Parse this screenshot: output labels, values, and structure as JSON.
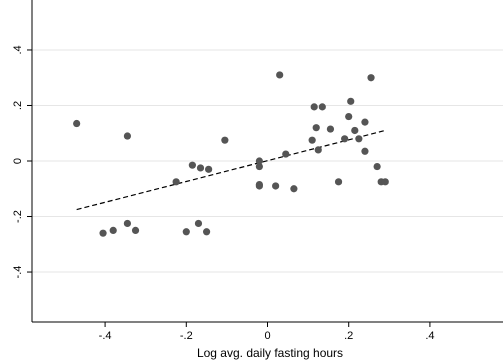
{
  "chart_data": {
    "type": "scatter",
    "title": "",
    "xlabel": "Log avg. daily fasting hours",
    "ylabel": "",
    "xlim": [
      -0.58,
      0.58
    ],
    "ylim": [
      -0.58,
      0.58
    ],
    "x_ticks": [
      -0.4,
      -0.2,
      0,
      0.2,
      0.4
    ],
    "x_tick_labels": [
      "-.4",
      "-.2",
      "0",
      ".2",
      ".4"
    ],
    "y_ticks": [
      -0.4,
      -0.2,
      0,
      0.2,
      0.4
    ],
    "y_tick_labels": [
      "-.4",
      "-.2",
      "0",
      ".2",
      ".4"
    ],
    "grid": "horizontal",
    "legend": "none",
    "colors": {
      "points": "#555555",
      "fit_line": "#000000",
      "grid": "#e6e6e6",
      "axis": "#000000"
    },
    "points": [
      {
        "x": -0.47,
        "y": 0.135
      },
      {
        "x": -0.405,
        "y": -0.26
      },
      {
        "x": -0.38,
        "y": -0.25
      },
      {
        "x": -0.345,
        "y": -0.225
      },
      {
        "x": -0.345,
        "y": 0.09
      },
      {
        "x": -0.325,
        "y": -0.25
      },
      {
        "x": -0.225,
        "y": -0.075
      },
      {
        "x": -0.2,
        "y": -0.255
      },
      {
        "x": -0.185,
        "y": -0.015
      },
      {
        "x": -0.17,
        "y": -0.225
      },
      {
        "x": -0.165,
        "y": -0.025
      },
      {
        "x": -0.15,
        "y": -0.255
      },
      {
        "x": -0.145,
        "y": -0.03
      },
      {
        "x": -0.105,
        "y": 0.075
      },
      {
        "x": -0.02,
        "y": 0.0
      },
      {
        "x": -0.02,
        "y": -0.02
      },
      {
        "x": -0.02,
        "y": -0.085
      },
      {
        "x": -0.02,
        "y": -0.09
      },
      {
        "x": 0.02,
        "y": -0.09
      },
      {
        "x": 0.03,
        "y": 0.31
      },
      {
        "x": 0.045,
        "y": 0.025
      },
      {
        "x": 0.065,
        "y": -0.1
      },
      {
        "x": 0.11,
        "y": 0.075
      },
      {
        "x": 0.115,
        "y": 0.195
      },
      {
        "x": 0.12,
        "y": 0.12
      },
      {
        "x": 0.125,
        "y": 0.04
      },
      {
        "x": 0.135,
        "y": 0.195
      },
      {
        "x": 0.155,
        "y": 0.115
      },
      {
        "x": 0.175,
        "y": -0.075
      },
      {
        "x": 0.19,
        "y": 0.08
      },
      {
        "x": 0.2,
        "y": 0.16
      },
      {
        "x": 0.205,
        "y": 0.215
      },
      {
        "x": 0.215,
        "y": 0.11
      },
      {
        "x": 0.225,
        "y": 0.08
      },
      {
        "x": 0.24,
        "y": 0.14
      },
      {
        "x": 0.24,
        "y": 0.035
      },
      {
        "x": 0.255,
        "y": 0.3
      },
      {
        "x": 0.27,
        "y": -0.02
      },
      {
        "x": 0.28,
        "y": -0.075
      },
      {
        "x": 0.29,
        "y": -0.075
      }
    ],
    "fit_line": {
      "x": [
        -0.47,
        0.29
      ],
      "y": [
        -0.175,
        0.11
      ],
      "style": "dashed"
    }
  }
}
